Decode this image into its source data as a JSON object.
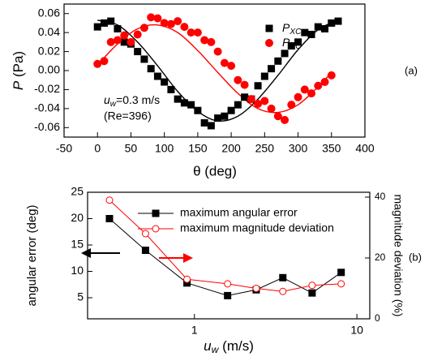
{
  "chart_data": [
    {
      "type": "scatter",
      "panel": "(a)",
      "xlabel": "θ (deg)",
      "ylabel": "P (Pa)",
      "annotations": [
        "uw=0.3 m/s",
        "(Re=396)"
      ],
      "xlim": [
        -50,
        400
      ],
      "xticks": [
        -50,
        0,
        50,
        100,
        150,
        200,
        250,
        300,
        350,
        400
      ],
      "ylim": [
        -0.07,
        0.07
      ],
      "yticks": [
        -0.06,
        -0.04,
        -0.02,
        {
          "value": 0,
          "label": "0.00"
        },
        0.02,
        0.04,
        0.06
      ],
      "legend": "upper right",
      "series": [
        {
          "name": "PXC",
          "color": "#000000",
          "marker": "square",
          "x": [
            0,
            10,
            20,
            30,
            40,
            50,
            60,
            70,
            80,
            90,
            100,
            110,
            120,
            130,
            140,
            150,
            160,
            170,
            180,
            190,
            200,
            210,
            220,
            230,
            240,
            250,
            260,
            270,
            280,
            290,
            300,
            310,
            320,
            330,
            340,
            350,
            360
          ],
          "values": [
            0.046,
            0.05,
            0.052,
            0.044,
            0.03,
            0.028,
            0.02,
            0.012,
            0.002,
            -0.006,
            -0.012,
            -0.02,
            -0.03,
            -0.034,
            -0.036,
            -0.042,
            -0.055,
            -0.058,
            -0.05,
            -0.048,
            -0.042,
            -0.036,
            -0.028,
            -0.03,
            -0.016,
            -0.006,
            0.002,
            0.01,
            0.018,
            0.026,
            0.03,
            0.04,
            0.038,
            0.046,
            0.044,
            0.05,
            0.052
          ]
        },
        {
          "name": "PYC",
          "color": "#ff0000",
          "marker": "circle",
          "x": [
            0,
            10,
            20,
            30,
            40,
            50,
            60,
            70,
            80,
            90,
            100,
            110,
            120,
            130,
            140,
            150,
            160,
            170,
            180,
            190,
            200,
            210,
            220,
            230,
            240,
            250,
            260,
            270,
            280,
            290,
            300,
            310,
            320,
            330,
            340,
            350
          ],
          "values": [
            0.007,
            0.01,
            0.03,
            0.032,
            0.037,
            0.03,
            0.038,
            0.045,
            0.056,
            0.055,
            0.05,
            0.049,
            0.052,
            0.046,
            0.04,
            0.04,
            0.032,
            0.03,
            0.02,
            0.008,
            0.005,
            -0.01,
            -0.015,
            -0.03,
            -0.035,
            -0.032,
            -0.04,
            -0.048,
            -0.052,
            -0.036,
            -0.028,
            -0.02,
            -0.024,
            -0.016,
            -0.012,
            -0.005
          ]
        }
      ],
      "fits": [
        {
          "color": "#000000",
          "x": [
            0,
            30,
            60,
            90,
            120,
            150,
            180,
            210,
            240,
            270,
            300,
            330,
            360
          ],
          "values": [
            0.053,
            0.048,
            0.03,
            0.005,
            -0.022,
            -0.043,
            -0.053,
            -0.048,
            -0.03,
            -0.005,
            0.022,
            0.043,
            0.053
          ]
        },
        {
          "color": "#ff0000",
          "x": [
            0,
            30,
            60,
            90,
            120,
            150,
            180,
            210,
            240,
            270,
            300,
            330,
            350
          ],
          "values": [
            0.006,
            0.028,
            0.044,
            0.048,
            0.04,
            0.021,
            -0.002,
            -0.024,
            -0.04,
            -0.044,
            -0.036,
            -0.017,
            -0.002
          ]
        }
      ]
    },
    {
      "type": "line",
      "panel": "(b)",
      "xlabel": "uw (m/s)",
      "ylabel": "angular error (deg)",
      "y2label": "magnitude deviation (%)",
      "xscale": "log",
      "xlim": [
        0.22,
        12
      ],
      "xticks": [
        1,
        10
      ],
      "ylim": [
        1,
        25
      ],
      "yticks": [
        5,
        10,
        15,
        20,
        25
      ],
      "y2lim": [
        0,
        41.6
      ],
      "y2ticks": [
        0,
        20,
        40
      ],
      "legend": "upper right",
      "x": [
        0.3,
        0.5,
        0.9,
        1.6,
        2.4,
        3.5,
        5.3,
        8.0
      ],
      "series": [
        {
          "name": "maximum angular error",
          "color": "#000000",
          "marker": "square",
          "filled": true,
          "values": [
            20,
            14,
            7.8,
            5.4,
            6.5,
            8.8,
            5.9,
            9.8
          ]
        },
        {
          "name": "maximum magnitude deviation",
          "color": "#ff0000",
          "marker": "circle",
          "filled": false,
          "axis": "y2",
          "values": [
            39,
            28,
            13,
            11.5,
            10,
            9,
            11,
            11.5
          ]
        }
      ]
    }
  ]
}
